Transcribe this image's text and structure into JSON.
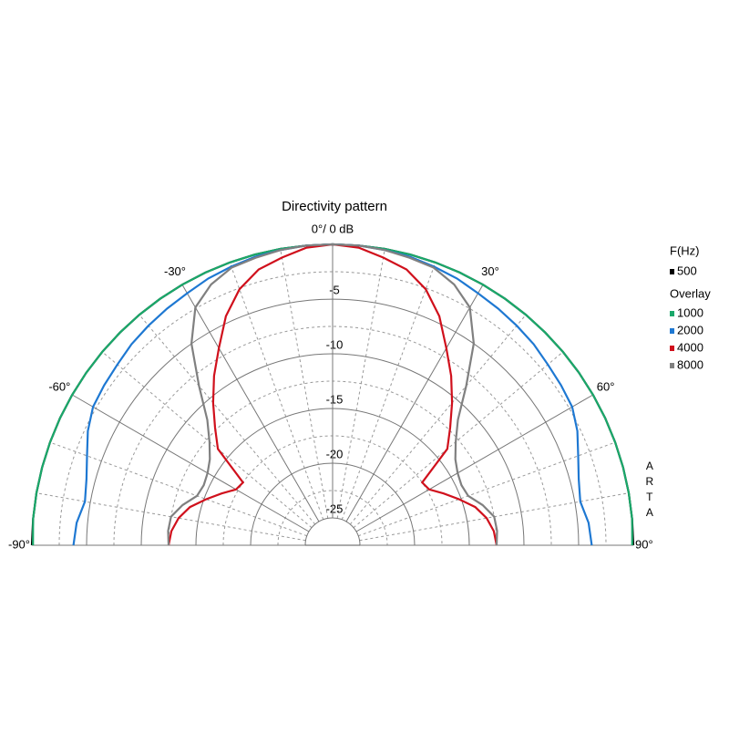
{
  "chart_data": {
    "type": "polar",
    "title": "Directivity pattern",
    "rlim": [
      -27.5,
      0
    ],
    "rticks": [
      -25,
      -20,
      -15,
      -10,
      -5
    ],
    "rminorticks": [
      -22.5,
      -17.5,
      -12.5,
      -7.5,
      -2.5
    ],
    "thetaticks": [
      {
        "value": -90,
        "label": "-90°"
      },
      {
        "value": -60,
        "label": "-60°"
      },
      {
        "value": -30,
        "label": "-30°"
      },
      {
        "value": 0,
        "label": "0°/ 0 dB"
      },
      {
        "value": 30,
        "label": "30°"
      },
      {
        "value": 60,
        "label": "60°"
      },
      {
        "value": 90,
        "label": "90°"
      }
    ],
    "thetaminorticks": [
      -80,
      -70,
      -50,
      -40,
      -20,
      -10,
      10,
      20,
      40,
      50,
      70,
      80
    ],
    "legend_title": "F(Hz)",
    "legend_subtitle": "Overlay",
    "watermark": "ARTA",
    "theta": [
      -90,
      -85,
      -80,
      -75,
      -70,
      -65,
      -60,
      -55,
      -50,
      -45,
      -40,
      -35,
      -30,
      -25,
      -20,
      -15,
      -10,
      -5,
      0,
      5,
      10,
      15,
      20,
      25,
      30,
      35,
      40,
      45,
      50,
      55,
      60,
      65,
      70,
      75,
      80,
      85,
      90
    ],
    "series": [
      {
        "name": "500",
        "color": "#000000",
        "values": [
          0,
          0,
          0,
          0,
          0,
          0,
          0,
          0,
          0,
          0,
          0,
          0,
          0,
          0,
          0,
          0,
          0,
          0,
          0,
          0,
          0,
          0,
          0,
          0,
          0,
          0,
          0,
          0,
          0,
          0,
          0,
          0,
          0,
          0,
          0,
          0,
          0
        ]
      },
      {
        "name": "1000",
        "color": "#1aa86a",
        "values": [
          -0.1,
          0,
          0,
          0,
          0,
          0,
          0,
          0,
          0,
          0,
          0,
          0,
          0,
          0,
          0,
          0,
          0,
          0,
          0,
          0,
          0,
          0,
          0,
          0,
          0,
          0,
          0,
          0,
          0,
          0,
          0,
          0,
          0,
          0,
          0,
          0,
          -0.1
        ]
      },
      {
        "name": "2000",
        "color": "#1e78d2",
        "values": [
          -3.8,
          -4.0,
          -4.5,
          -4.2,
          -3.6,
          -2.8,
          -2.2,
          -2.0,
          -1.8,
          -1.5,
          -1.3,
          -1.1,
          -0.9,
          -0.6,
          -0.4,
          -0.2,
          -0.1,
          0,
          0,
          0,
          -0.1,
          -0.2,
          -0.4,
          -0.6,
          -0.9,
          -1.1,
          -1.3,
          -1.5,
          -1.8,
          -2.0,
          -2.2,
          -2.8,
          -3.6,
          -4.2,
          -4.5,
          -4.0,
          -3.8
        ]
      },
      {
        "name": "4000",
        "color": "#d0101c",
        "values": [
          -12.5,
          -12.7,
          -13.2,
          -14.0,
          -15.2,
          -16.3,
          -17.3,
          -17.5,
          -13.8,
          -12.3,
          -10.5,
          -8.6,
          -6.7,
          -4.4,
          -2.6,
          -1.4,
          -0.8,
          -0.2,
          0,
          -0.2,
          -0.8,
          -1.4,
          -2.6,
          -4.4,
          -6.7,
          -8.6,
          -10.5,
          -12.3,
          -13.8,
          -17.5,
          -17.3,
          -16.3,
          -15.2,
          -14.0,
          -13.2,
          -12.7,
          -12.5
        ]
      },
      {
        "name": "8000",
        "color": "#808080",
        "values": [
          -12.5,
          -12.4,
          -12.5,
          -13.3,
          -14.3,
          -14.5,
          -14.3,
          -13.8,
          -12.8,
          -11.3,
          -8.5,
          -5.0,
          -2.4,
          -1.2,
          -0.5,
          -0.3,
          -0.1,
          0,
          0,
          0,
          -0.1,
          -0.3,
          -0.5,
          -1.2,
          -2.4,
          -5.0,
          -8.5,
          -11.3,
          -12.8,
          -13.8,
          -14.3,
          -14.5,
          -14.3,
          -13.3,
          -12.5,
          -12.4,
          -12.5
        ]
      }
    ]
  }
}
